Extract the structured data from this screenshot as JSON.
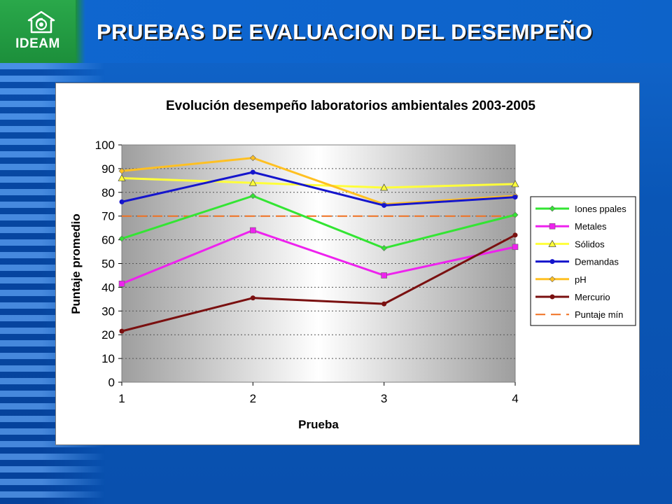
{
  "header": {
    "logo_text": "IDEAM",
    "title": "PRUEBAS DE EVALUACION DEL DESEMPEÑO"
  },
  "colors": {
    "header_blue": "#0f66d0",
    "logo_green": "#22a044",
    "plot_gray": "#bdbdbd"
  },
  "chart_data": {
    "type": "line",
    "title": "Evolución desempeño laboratorios ambientales 2003-2005",
    "xlabel": "Prueba",
    "ylabel": "Puntaje promedio",
    "categories": [
      "1",
      "2",
      "3",
      "4"
    ],
    "ylim": [
      0,
      100
    ],
    "yticks": [
      0,
      10,
      20,
      30,
      40,
      50,
      60,
      70,
      80,
      90,
      100
    ],
    "grid": "horizontal dashed",
    "legend_position": "right",
    "series": [
      {
        "name": "Iones ppales",
        "values": [
          60.5,
          78.5,
          56.5,
          70.5
        ],
        "color": "#33e533",
        "marker": "diamond",
        "dash": false
      },
      {
        "name": "Metales",
        "values": [
          41.5,
          64,
          45,
          57
        ],
        "color": "#ee22ee",
        "marker": "square",
        "dash": false
      },
      {
        "name": "Sólidos",
        "values": [
          86,
          84,
          82,
          83.5
        ],
        "color": "#ffff3a",
        "marker": "triangle",
        "dash": false
      },
      {
        "name": "Demandas",
        "values": [
          76,
          88.5,
          74.5,
          78
        ],
        "color": "#1515cc",
        "marker": "circle",
        "dash": false
      },
      {
        "name": "pH",
        "values": [
          89,
          94.5,
          75,
          78.5
        ],
        "color": "#ffc022",
        "marker": "diamond",
        "dash": false
      },
      {
        "name": "Mercurio",
        "values": [
          21.5,
          35.5,
          33,
          62
        ],
        "color": "#7a1010",
        "marker": "circle",
        "dash": false
      },
      {
        "name": "Puntaje mín",
        "values": [
          70,
          70,
          70,
          70
        ],
        "color": "#f07020",
        "marker": "none",
        "dash": true
      }
    ]
  }
}
